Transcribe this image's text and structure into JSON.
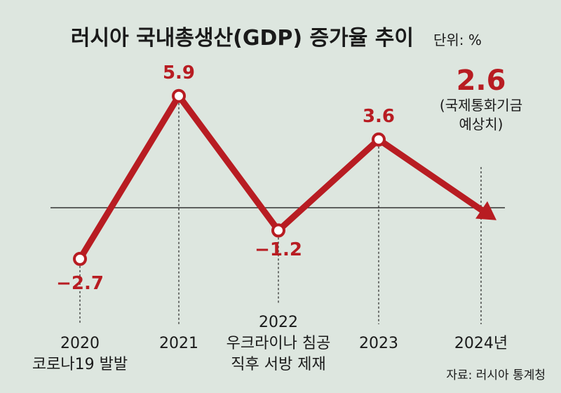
{
  "chart_data": {
    "type": "line",
    "title": "러시아 국내총생산(GDP) 증가율 추이",
    "unit": "단위: %",
    "x": [
      "2020",
      "2021",
      "2022",
      "2023",
      "2024"
    ],
    "x_labels": [
      [
        "2020",
        "코로나19 발발"
      ],
      [
        "2021"
      ],
      [
        "2022",
        "우크라이나 침공",
        "직후 서방 제재"
      ],
      [
        "2023"
      ],
      [
        "2024년"
      ]
    ],
    "values": [
      -2.7,
      5.9,
      -1.2,
      3.6,
      2.6
    ],
    "value_labels": [
      "−2.7",
      "5.9",
      "−1.2",
      "3.6",
      "2.6"
    ],
    "forecast_note": [
      "(국제통화기금",
      "예상치)"
    ],
    "ylim": [
      -3.5,
      7
    ],
    "baseline": 0,
    "line_color": "#b81c22",
    "source": "자료: 러시아 통계청"
  }
}
